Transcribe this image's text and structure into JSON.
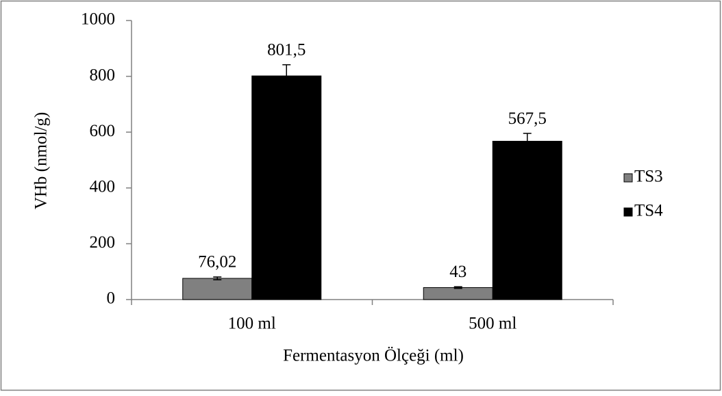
{
  "chart_data": {
    "type": "bar",
    "categories": [
      "100 ml",
      "500 ml"
    ],
    "series": [
      {
        "name": "TS3",
        "color": "#808080",
        "values": [
          76.02,
          43
        ],
        "value_labels": [
          "76,02",
          "43"
        ],
        "errors": [
          5,
          3
        ]
      },
      {
        "name": "TS4",
        "color": "#000000",
        "values": [
          801.5,
          567.5
        ],
        "value_labels": [
          "801,5",
          "567,5"
        ],
        "errors": [
          40,
          28
        ]
      }
    ],
    "x_label": "Fermentasyon Ölçeği (ml)",
    "y_label": "VHb (nmol/g)",
    "ylim": [
      0,
      1000
    ],
    "yticks": [
      0,
      200,
      400,
      600,
      800,
      1000
    ],
    "legend": "right"
  }
}
